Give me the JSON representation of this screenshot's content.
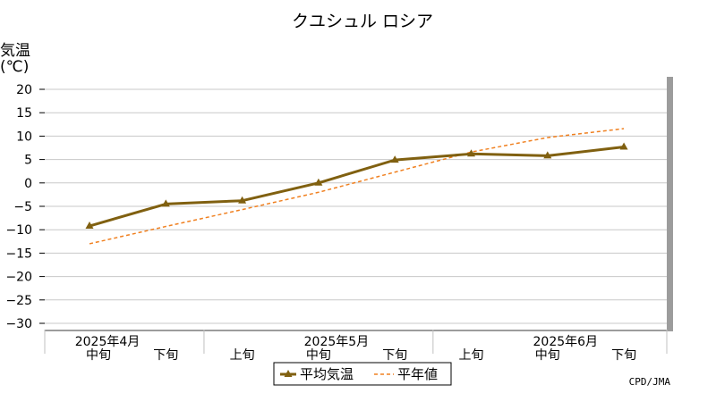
{
  "chart_data": {
    "type": "line",
    "title": "クユシュル ロシア",
    "ylabel_line1": "気温",
    "ylabel_line2": "(℃)",
    "ylim": [
      -30,
      20
    ],
    "yticks": [
      20,
      15,
      10,
      5,
      0,
      -5,
      -10,
      -15,
      -20,
      -25,
      -30
    ],
    "grid": true,
    "x_periods": [
      "中旬",
      "下旬",
      "上旬",
      "中旬",
      "下旬",
      "上旬",
      "中旬",
      "下旬"
    ],
    "x_months": [
      {
        "label": "2025年4月",
        "at_index": 0
      },
      {
        "label": "2025年5月",
        "at_index": 3
      },
      {
        "label": "2025年6月",
        "at_index": 6
      }
    ],
    "series": [
      {
        "name": "平均気温",
        "color": "#806010",
        "style": "solid-triangle",
        "values": [
          -9.2,
          -4.5,
          -3.8,
          0.0,
          4.9,
          6.2,
          5.8,
          7.7
        ]
      },
      {
        "name": "平年値",
        "color": "#f08020",
        "style": "dashed",
        "values": [
          -13.0,
          -9.3,
          -5.7,
          -2.0,
          2.3,
          6.6,
          9.7,
          11.6
        ]
      }
    ],
    "legend_position": "bottom-center",
    "credit": "CPD/JMA"
  }
}
